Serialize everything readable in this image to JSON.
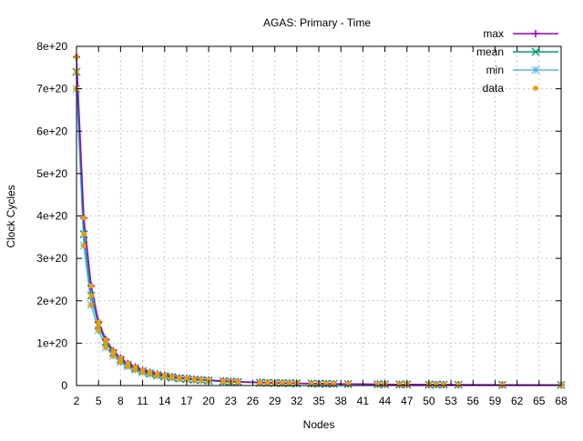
{
  "chart_data": {
    "type": "line",
    "title": "AGAS: Primary - Time",
    "xlabel": "Nodes",
    "ylabel": "Clock Cycles",
    "xlim": [
      2,
      68
    ],
    "ylim": [
      0,
      8e+20
    ],
    "y_unit_note": "values below in units of 1e20",
    "y_scale": 1e+20,
    "grid": true,
    "legend_position": "top-right",
    "x_ticks": [
      "2",
      "5",
      "8",
      "11",
      "14",
      "17",
      "20",
      "23",
      "26",
      "29",
      "32",
      "35",
      "38",
      "41",
      "44",
      "47",
      "50",
      "53",
      "56",
      "59",
      "62",
      "65",
      "68"
    ],
    "x_tick_values": [
      2,
      5,
      8,
      11,
      14,
      17,
      20,
      23,
      26,
      29,
      32,
      35,
      38,
      41,
      44,
      47,
      50,
      53,
      56,
      59,
      62,
      65,
      68
    ],
    "y_ticks": [
      "0",
      "1e+20",
      "2e+20",
      "3e+20",
      "4e+20",
      "5e+20",
      "6e+20",
      "7e+20",
      "8e+20"
    ],
    "y_tick_values": [
      0,
      1,
      2,
      3,
      4,
      5,
      6,
      7,
      8
    ],
    "x": [
      2,
      3,
      4,
      5,
      6,
      7,
      8,
      9,
      10,
      11,
      12,
      13,
      14,
      15,
      16,
      17,
      18,
      19,
      20,
      22,
      23,
      24,
      27,
      28,
      29,
      30,
      31,
      32,
      34,
      35,
      36,
      37,
      39,
      43,
      44,
      46,
      47,
      50,
      51,
      52,
      54,
      60,
      68
    ],
    "series": [
      {
        "name": "max",
        "color": "#9400d3",
        "marker": "plus",
        "values": [
          7.75,
          3.95,
          2.35,
          1.5,
          1.08,
          0.82,
          0.65,
          0.52,
          0.44,
          0.36,
          0.31,
          0.27,
          0.24,
          0.21,
          0.18,
          0.17,
          0.15,
          0.14,
          0.13,
          0.11,
          0.1,
          0.09,
          0.074,
          0.068,
          0.064,
          0.061,
          0.058,
          0.054,
          0.048,
          0.046,
          0.044,
          0.041,
          0.037,
          0.031,
          0.03,
          0.028,
          0.027,
          0.024,
          0.024,
          0.022,
          0.02,
          0.017,
          0.014
        ]
      },
      {
        "name": "mean",
        "color": "#009e73",
        "marker": "cross",
        "values": [
          7.4,
          3.57,
          2.12,
          1.42,
          1.02,
          0.77,
          0.61,
          0.49,
          0.41,
          0.34,
          0.29,
          0.25,
          0.22,
          0.2,
          0.17,
          0.16,
          0.14,
          0.13,
          0.12,
          0.1,
          0.09,
          0.085,
          0.069,
          0.064,
          0.06,
          0.057,
          0.054,
          0.05,
          0.045,
          0.043,
          0.041,
          0.038,
          0.035,
          0.029,
          0.028,
          0.026,
          0.025,
          0.022,
          0.022,
          0.021,
          0.019,
          0.016,
          0.013
        ]
      },
      {
        "name": "min",
        "color": "#56b4e9",
        "marker": "star",
        "values": [
          7.0,
          3.3,
          1.9,
          1.3,
          0.9,
          0.7,
          0.55,
          0.45,
          0.37,
          0.31,
          0.27,
          0.23,
          0.2,
          0.18,
          0.16,
          0.15,
          0.13,
          0.12,
          0.11,
          0.09,
          0.085,
          0.08,
          0.065,
          0.06,
          0.056,
          0.053,
          0.05,
          0.047,
          0.042,
          0.04,
          0.038,
          0.036,
          0.033,
          0.027,
          0.026,
          0.024,
          0.023,
          0.021,
          0.02,
          0.019,
          0.018,
          0.015,
          0.012
        ]
      },
      {
        "name": "data",
        "color": "#e69f00",
        "marker": "square",
        "points_from": [
          "max",
          "mean",
          "min"
        ]
      }
    ]
  }
}
